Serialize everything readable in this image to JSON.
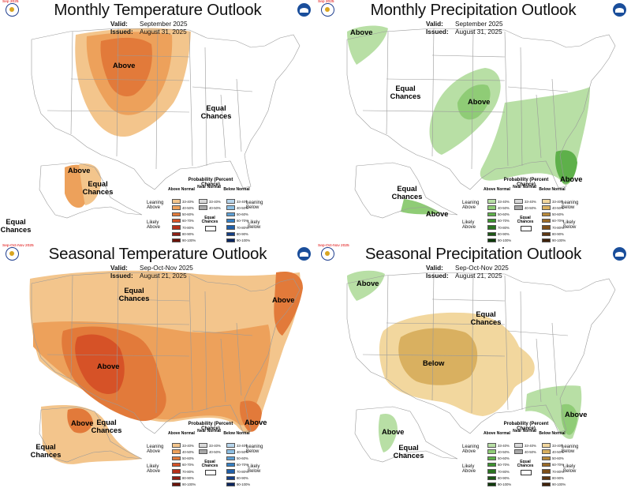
{
  "panels": [
    {
      "title": "Monthly Temperature Outlook",
      "valid_label": "Valid:",
      "valid": "September 2025",
      "issued_label": "Issued:",
      "issued": "August 31, 2025",
      "corner_tag": "Sep 2025",
      "labels": [
        "Above",
        "Equal Chances",
        "Above",
        "Equal Chances",
        "Equal Chances"
      ]
    },
    {
      "title": "Monthly Precipitation Outlook",
      "valid_label": "Valid:",
      "valid": "September 2025",
      "issued_label": "Issued:",
      "issued": "August 31, 2025",
      "corner_tag": "Sep 2025",
      "labels": [
        "Above",
        "Equal Chances",
        "Above",
        "Above",
        "Equal Chances",
        "Above"
      ]
    },
    {
      "title": "Seasonal Temperature Outlook",
      "valid_label": "Valid:",
      "valid": "Sep-Oct-Nov 2025",
      "issued_label": "Issued:",
      "issued": "August 21, 2025",
      "corner_tag": "Sep-Oct-Nov 2025",
      "labels": [
        "Equal Chances",
        "Above",
        "Above",
        "Above",
        "Above",
        "Equal Chances",
        "Equal Chances"
      ]
    },
    {
      "title": "Seasonal Precipitation Outlook",
      "valid_label": "Valid:",
      "valid": "Sep-Oct-Nov 2025",
      "issued_label": "Issued:",
      "issued": "August 21, 2025",
      "corner_tag": "Sep-Oct-Nov 2025",
      "labels": [
        "Above",
        "Equal Chances",
        "Below",
        "Above",
        "Above",
        "Equal Chances"
      ]
    }
  ],
  "legend_temp": {
    "heading": "Probability (Percent Chance)",
    "col_above": "Above Normal",
    "col_near": "Near Normal",
    "col_below": "Below Normal",
    "leaning_above": "Leaning Above",
    "likely_above": "Likely Above",
    "leaning_below": "Leaning Below",
    "likely_below": "Likely Below",
    "equal_chances": "Equal Chances",
    "near_ranges": [
      "33-40%",
      "40-50%"
    ],
    "ranges": [
      "33-40%",
      "40-50%",
      "50-60%",
      "60-70%",
      "70-80%",
      "80-90%",
      "90-100%"
    ]
  },
  "legend_precip": {
    "heading": "Probability (Percent Chance)",
    "col_above": "Above Normal",
    "col_near": "Near Normal",
    "col_below": "Below Normal",
    "leaning_above": "Leaning Above",
    "likely_above": "Likely Above",
    "leaning_below": "Leaning Below",
    "likely_below": "Likely Below",
    "equal_chances": "Equal Chances",
    "near_ranges": [
      "33-40%",
      "40-50%"
    ],
    "ranges": [
      "33-40%",
      "40-50%",
      "50-60%",
      "60-70%",
      "70-80%",
      "80-90%",
      "90-100%"
    ]
  },
  "colors": {
    "temp_above": [
      "#f3c58c",
      "#eda15b",
      "#e27a3a",
      "#d65227",
      "#b5301a",
      "#8f1f14",
      "#6b1208"
    ],
    "temp_below": [
      "#b7d5ec",
      "#8dbfe3",
      "#5d9fd4",
      "#357fc3",
      "#1f5ea8",
      "#143e85",
      "#0b2660"
    ],
    "precip_above": [
      "#b8dfa5",
      "#8fcc76",
      "#5eb04a",
      "#3d932f",
      "#2a7420",
      "#1c5615",
      "#0f3a0b"
    ],
    "precip_below": [
      "#f2d79e",
      "#d9b060",
      "#b98a3b",
      "#9a6a27",
      "#7d4f1a",
      "#5e3712",
      "#40220a"
    ],
    "near": [
      "#d9d9d9",
      "#a8a8a8"
    ]
  }
}
